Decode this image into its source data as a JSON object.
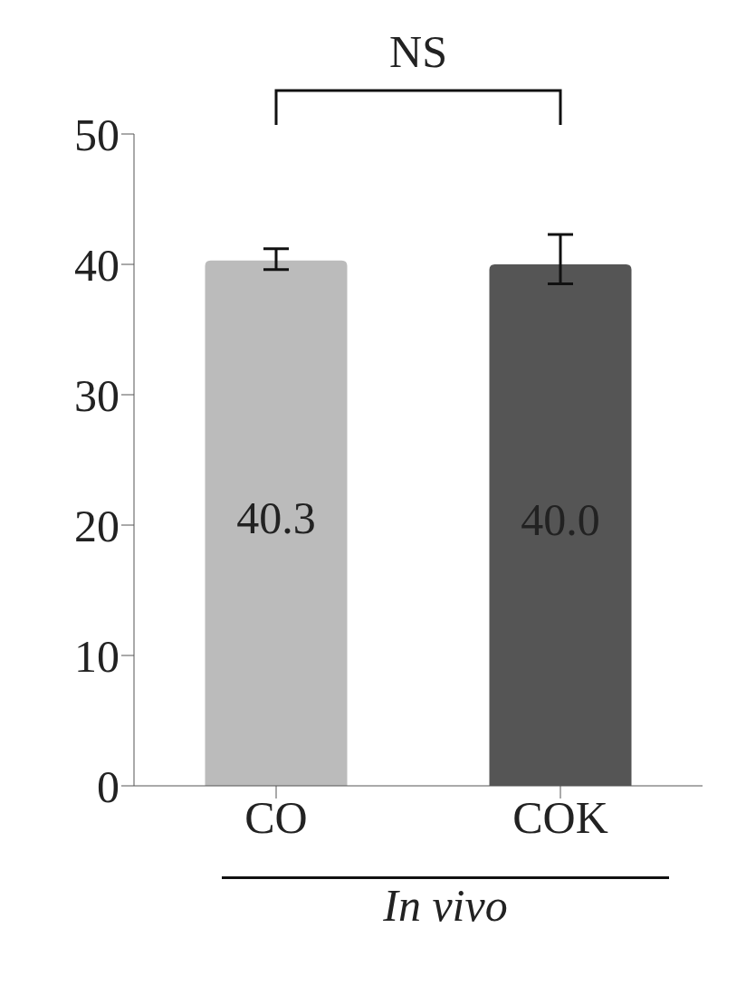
{
  "chart_data": {
    "type": "bar",
    "categories": [
      "CO",
      "COK"
    ],
    "values": [
      40.3,
      40.0
    ],
    "colors": [
      "#bbbbbb",
      "#555555"
    ],
    "errors": [
      [
        39.6,
        41.2
      ],
      [
        38.5,
        42.3
      ]
    ],
    "value_labels": [
      "40.3",
      "40.0"
    ],
    "xlabel": "In vivo",
    "annotations": [
      "NS"
    ],
    "ylim": [
      0,
      50
    ],
    "yticks": [
      0,
      10,
      20,
      30,
      40,
      50
    ],
    "grid": false,
    "legend": false
  }
}
